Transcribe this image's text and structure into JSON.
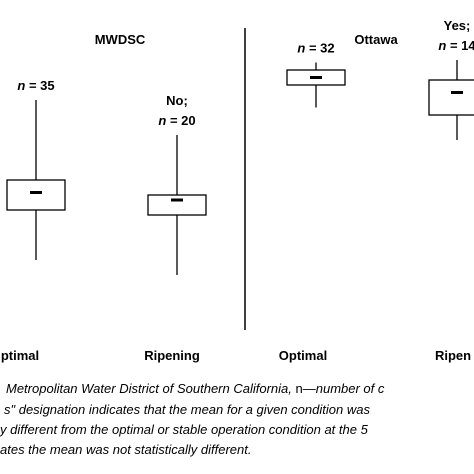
{
  "chart_data": {
    "type": "boxplot",
    "panels": [
      {
        "title": "MWDSC",
        "groups": [
          {
            "category": "Optimal",
            "n_label": "n = 35",
            "sig_label": "",
            "q1": 0.4,
            "q3": 0.52,
            "mean": 0.47,
            "whisker_low": 0.2,
            "whisker_high": 0.84
          },
          {
            "category": "Ripening",
            "n_label": "n = 20",
            "sig_label": "No;",
            "q1": 0.38,
            "q3": 0.46,
            "mean": 0.44,
            "whisker_low": 0.14,
            "whisker_high": 0.7
          }
        ]
      },
      {
        "title": "Ottawa",
        "groups": [
          {
            "category": "Optimal",
            "n_label": "n = 32",
            "sig_label": "",
            "q1": 0.9,
            "q3": 0.96,
            "mean": 0.93,
            "whisker_low": 0.81,
            "whisker_high": 0.99
          },
          {
            "category": "Ripening",
            "n_label": "n = 14",
            "sig_label": "Yes;",
            "q1": 0.78,
            "q3": 0.92,
            "mean": 0.87,
            "whisker_low": 0.68,
            "whisker_high": 1.0
          }
        ]
      }
    ],
    "category_labels_visible": [
      "ptimal",
      "Ripening",
      "Optimal",
      "Ripen"
    ]
  },
  "caption": {
    "line1_italic": "Metropolitan Water District of Southern California,",
    "line1_plain": " n",
    "line1_rest": "—number of c",
    "line2": "s\" designation indicates that the mean for a given condition was",
    "line3": "y different from the optimal or stable operation condition at the 5",
    "line4": "ates the mean was not statistically different."
  }
}
